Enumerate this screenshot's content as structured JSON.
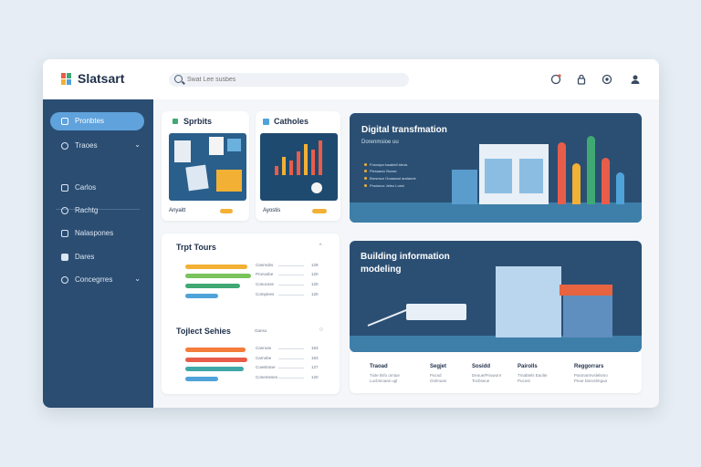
{
  "app": {
    "name": "Slatsart"
  },
  "search": {
    "placeholder": "Swat Lee susbes"
  },
  "sidebar": {
    "items": [
      {
        "label": "Pronbtes"
      },
      {
        "label": "Traoes"
      },
      {
        "label": "Carlos"
      },
      {
        "label": "Rachtg"
      },
      {
        "label": "Nalaspones"
      },
      {
        "label": "Dares"
      },
      {
        "label": "Concegrres"
      }
    ]
  },
  "cards": {
    "sprints": {
      "title": "Sprbits",
      "caption": "Anyaitt"
    },
    "calendar": {
      "title": "Catholes",
      "caption": "Ayostis"
    },
    "tours": {
      "title": "Trpt Tours",
      "rows": [
        {
          "label": "Canmobs",
          "value": "129"
        },
        {
          "label": "Pronosbe",
          "value": "120"
        },
        {
          "label": "Conocsse",
          "value": "120"
        },
        {
          "label": "Compines",
          "value": "120"
        }
      ]
    },
    "series": {
      "title": "Tojlect Sehies",
      "meta": "Ganso",
      "rows": [
        {
          "label": "Canroas",
          "value": "153"
        },
        {
          "label": "Carnobe",
          "value": "153"
        },
        {
          "label": "Cowstrane",
          "value": "127"
        },
        {
          "label": "Conemeses",
          "value": "120"
        }
      ]
    }
  },
  "digital": {
    "title": "Digital transfmation",
    "subtitle": "Dorenmsioe uu",
    "legend": [
      "Fnsonpa lusabetl tdruis",
      "Plesaaclz Boose",
      "Bresnsur Ooaasnsl aralanrie",
      "Pnsionoc Jeleu Loesl"
    ],
    "chart_data": {
      "type": "bar",
      "values": [
        85,
        56,
        94,
        64,
        44
      ],
      "colors": [
        "#e85d4a",
        "#f2b035",
        "#3fa873",
        "#e85d4a",
        "#4fa3d9"
      ]
    }
  },
  "bim": {
    "title": "Building information modeling",
    "columns": [
      {
        "title": "Traoad",
        "desc": "Tiole tlsfo omtue\nLucbnioaas ugl"
      },
      {
        "title": "Segjet",
        "desc": "Pucsd\nOolmuas"
      },
      {
        "title": "Sosidd",
        "desc": "Deoue/Pnuwonr\nTocbseue"
      },
      {
        "title": "Pairolls",
        "desc": "Tmabtels Eaolte\nPucost"
      },
      {
        "title": "Reggorrars",
        "desc": "Pasmarmvslelsmo\nPeue Daroslmgua"
      }
    ]
  },
  "colors": {
    "accent": "#5fa2dc",
    "sidebar": "#2b4d72",
    "panel": "#2b4f73"
  }
}
